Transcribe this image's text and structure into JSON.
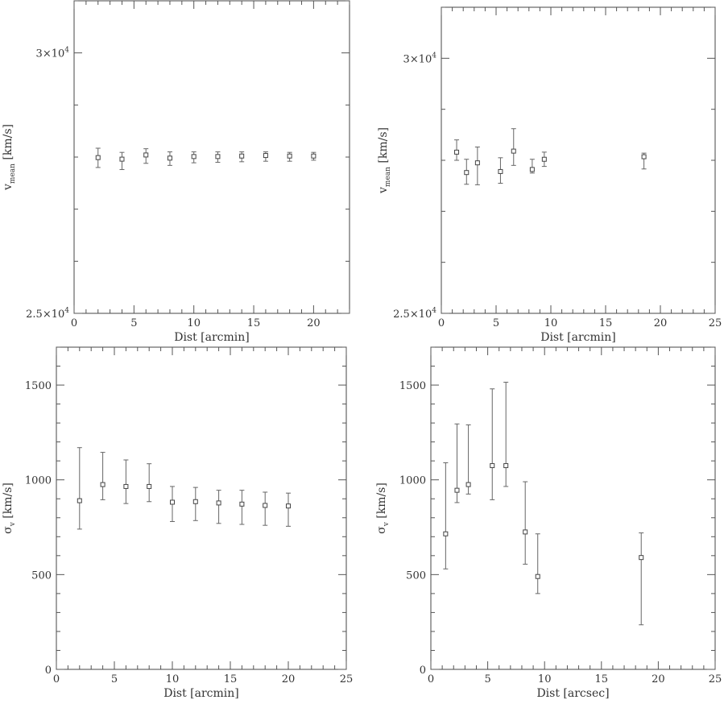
{
  "chart_data": [
    {
      "type": "scatter",
      "panel": "top-left",
      "xlabel": "Dist [arcmin]",
      "ylabel_main": "v",
      "ylabel_sub": "mean",
      "ylabel_unit": " [km/s]",
      "xlim": [
        0,
        23
      ],
      "ylim": [
        25000,
        31000
      ],
      "xticks_major": [
        0,
        5,
        10,
        15,
        20
      ],
      "x_minor_step": 1,
      "yticks_major": [
        25000,
        30000
      ],
      "y_minor_step": 1000,
      "ytick_labels": [
        {
          "value": 25000,
          "mantissa": "2.5",
          "exp": "4"
        },
        {
          "value": 30000,
          "mantissa": "3",
          "exp": "4"
        }
      ],
      "points": [
        {
          "x": 2,
          "y": 27990,
          "err_lo": 27800,
          "err_hi": 28170
        },
        {
          "x": 4,
          "y": 27960,
          "err_lo": 27760,
          "err_hi": 28090
        },
        {
          "x": 6,
          "y": 28040,
          "err_lo": 27880,
          "err_hi": 28160
        },
        {
          "x": 8,
          "y": 27980,
          "err_lo": 27840,
          "err_hi": 28100
        },
        {
          "x": 10,
          "y": 28010,
          "err_lo": 27890,
          "err_hi": 28100
        },
        {
          "x": 12,
          "y": 28010,
          "err_lo": 27900,
          "err_hi": 28100
        },
        {
          "x": 14,
          "y": 28020,
          "err_lo": 27910,
          "err_hi": 28100
        },
        {
          "x": 16,
          "y": 28030,
          "err_lo": 27920,
          "err_hi": 28100
        },
        {
          "x": 18,
          "y": 28020,
          "err_lo": 27920,
          "err_hi": 28090
        },
        {
          "x": 20,
          "y": 28020,
          "err_lo": 27940,
          "err_hi": 28090
        }
      ]
    },
    {
      "type": "scatter",
      "panel": "top-right",
      "xlabel": "Dist [arcmin]",
      "ylabel_main": "v",
      "ylabel_sub": "mean",
      "ylabel_unit": " [km/s]",
      "xlim": [
        0,
        25
      ],
      "ylim": [
        25000,
        31000
      ],
      "xticks_major": [
        0,
        5,
        10,
        15,
        20,
        25
      ],
      "x_minor_step": 1,
      "yticks_major": [
        25000,
        30000
      ],
      "y_minor_step": 1000,
      "ytick_labels": [
        {
          "value": 25000,
          "mantissa": "2.5",
          "exp": "4"
        },
        {
          "value": 30000,
          "mantissa": "3",
          "exp": "4"
        }
      ],
      "points": [
        {
          "x": 1.4,
          "y": 28160,
          "err_lo": 28000,
          "err_hi": 28400
        },
        {
          "x": 2.3,
          "y": 27760,
          "err_lo": 27530,
          "err_hi": 28020
        },
        {
          "x": 3.3,
          "y": 27950,
          "err_lo": 27520,
          "err_hi": 28260
        },
        {
          "x": 5.4,
          "y": 27780,
          "err_lo": 27550,
          "err_hi": 28050
        },
        {
          "x": 6.6,
          "y": 28180,
          "err_lo": 27900,
          "err_hi": 28620
        },
        {
          "x": 8.3,
          "y": 27820,
          "err_lo": 27750,
          "err_hi": 28020
        },
        {
          "x": 9.4,
          "y": 28020,
          "err_lo": 27880,
          "err_hi": 28160
        },
        {
          "x": 18.5,
          "y": 28070,
          "err_lo": 27830,
          "err_hi": 28140
        }
      ]
    },
    {
      "type": "scatter",
      "panel": "bottom-left",
      "xlabel": "Dist [arcmin]",
      "ylabel_main": "σ",
      "ylabel_sub": "v",
      "ylabel_unit": " [km/s]",
      "xlim": [
        0,
        25
      ],
      "ylim": [
        0,
        1700
      ],
      "xticks_major": [
        0,
        5,
        10,
        15,
        20,
        25
      ],
      "x_minor_step": 1,
      "yticks_major": [
        0,
        500,
        1000,
        1500
      ],
      "y_minor_step": 100,
      "ytick_labels": [
        {
          "value": 0,
          "text": "0"
        },
        {
          "value": 500,
          "text": "500"
        },
        {
          "value": 1000,
          "text": "1000"
        },
        {
          "value": 1500,
          "text": "1500"
        }
      ],
      "points": [
        {
          "x": 2,
          "y": 890,
          "err_lo": 740,
          "err_hi": 1170
        },
        {
          "x": 4,
          "y": 975,
          "err_lo": 895,
          "err_hi": 1145
        },
        {
          "x": 6,
          "y": 965,
          "err_lo": 875,
          "err_hi": 1105
        },
        {
          "x": 8,
          "y": 965,
          "err_lo": 885,
          "err_hi": 1085
        },
        {
          "x": 10,
          "y": 882,
          "err_lo": 780,
          "err_hi": 965
        },
        {
          "x": 12,
          "y": 885,
          "err_lo": 785,
          "err_hi": 960
        },
        {
          "x": 14,
          "y": 878,
          "err_lo": 770,
          "err_hi": 945
        },
        {
          "x": 16,
          "y": 872,
          "err_lo": 765,
          "err_hi": 945
        },
        {
          "x": 18,
          "y": 865,
          "err_lo": 760,
          "err_hi": 935
        },
        {
          "x": 20,
          "y": 862,
          "err_lo": 755,
          "err_hi": 930
        }
      ]
    },
    {
      "type": "scatter",
      "panel": "bottom-right",
      "xlabel": "Dist [arcsec]",
      "ylabel_main": "σ",
      "ylabel_sub": "v",
      "ylabel_unit": " [km/s]",
      "xlim": [
        0,
        25
      ],
      "ylim": [
        0,
        1700
      ],
      "xticks_major": [
        0,
        5,
        10,
        15,
        20,
        25
      ],
      "x_minor_step": 1,
      "yticks_major": [
        0,
        500,
        1000,
        1500
      ],
      "y_minor_step": 100,
      "ytick_labels": [
        {
          "value": 0,
          "text": "0"
        },
        {
          "value": 500,
          "text": "500"
        },
        {
          "value": 1000,
          "text": "1000"
        },
        {
          "value": 1500,
          "text": "1500"
        }
      ],
      "points": [
        {
          "x": 1.3,
          "y": 715,
          "err_lo": 530,
          "err_hi": 1090
        },
        {
          "x": 2.3,
          "y": 945,
          "err_lo": 880,
          "err_hi": 1295
        },
        {
          "x": 3.3,
          "y": 975,
          "err_lo": 925,
          "err_hi": 1290
        },
        {
          "x": 5.4,
          "y": 1075,
          "err_lo": 895,
          "err_hi": 1480
        },
        {
          "x": 6.6,
          "y": 1075,
          "err_lo": 965,
          "err_hi": 1515
        },
        {
          "x": 8.3,
          "y": 725,
          "err_lo": 555,
          "err_hi": 990
        },
        {
          "x": 9.4,
          "y": 490,
          "err_lo": 400,
          "err_hi": 715
        },
        {
          "x": 18.5,
          "y": 590,
          "err_lo": 235,
          "err_hi": 720
        }
      ]
    }
  ]
}
